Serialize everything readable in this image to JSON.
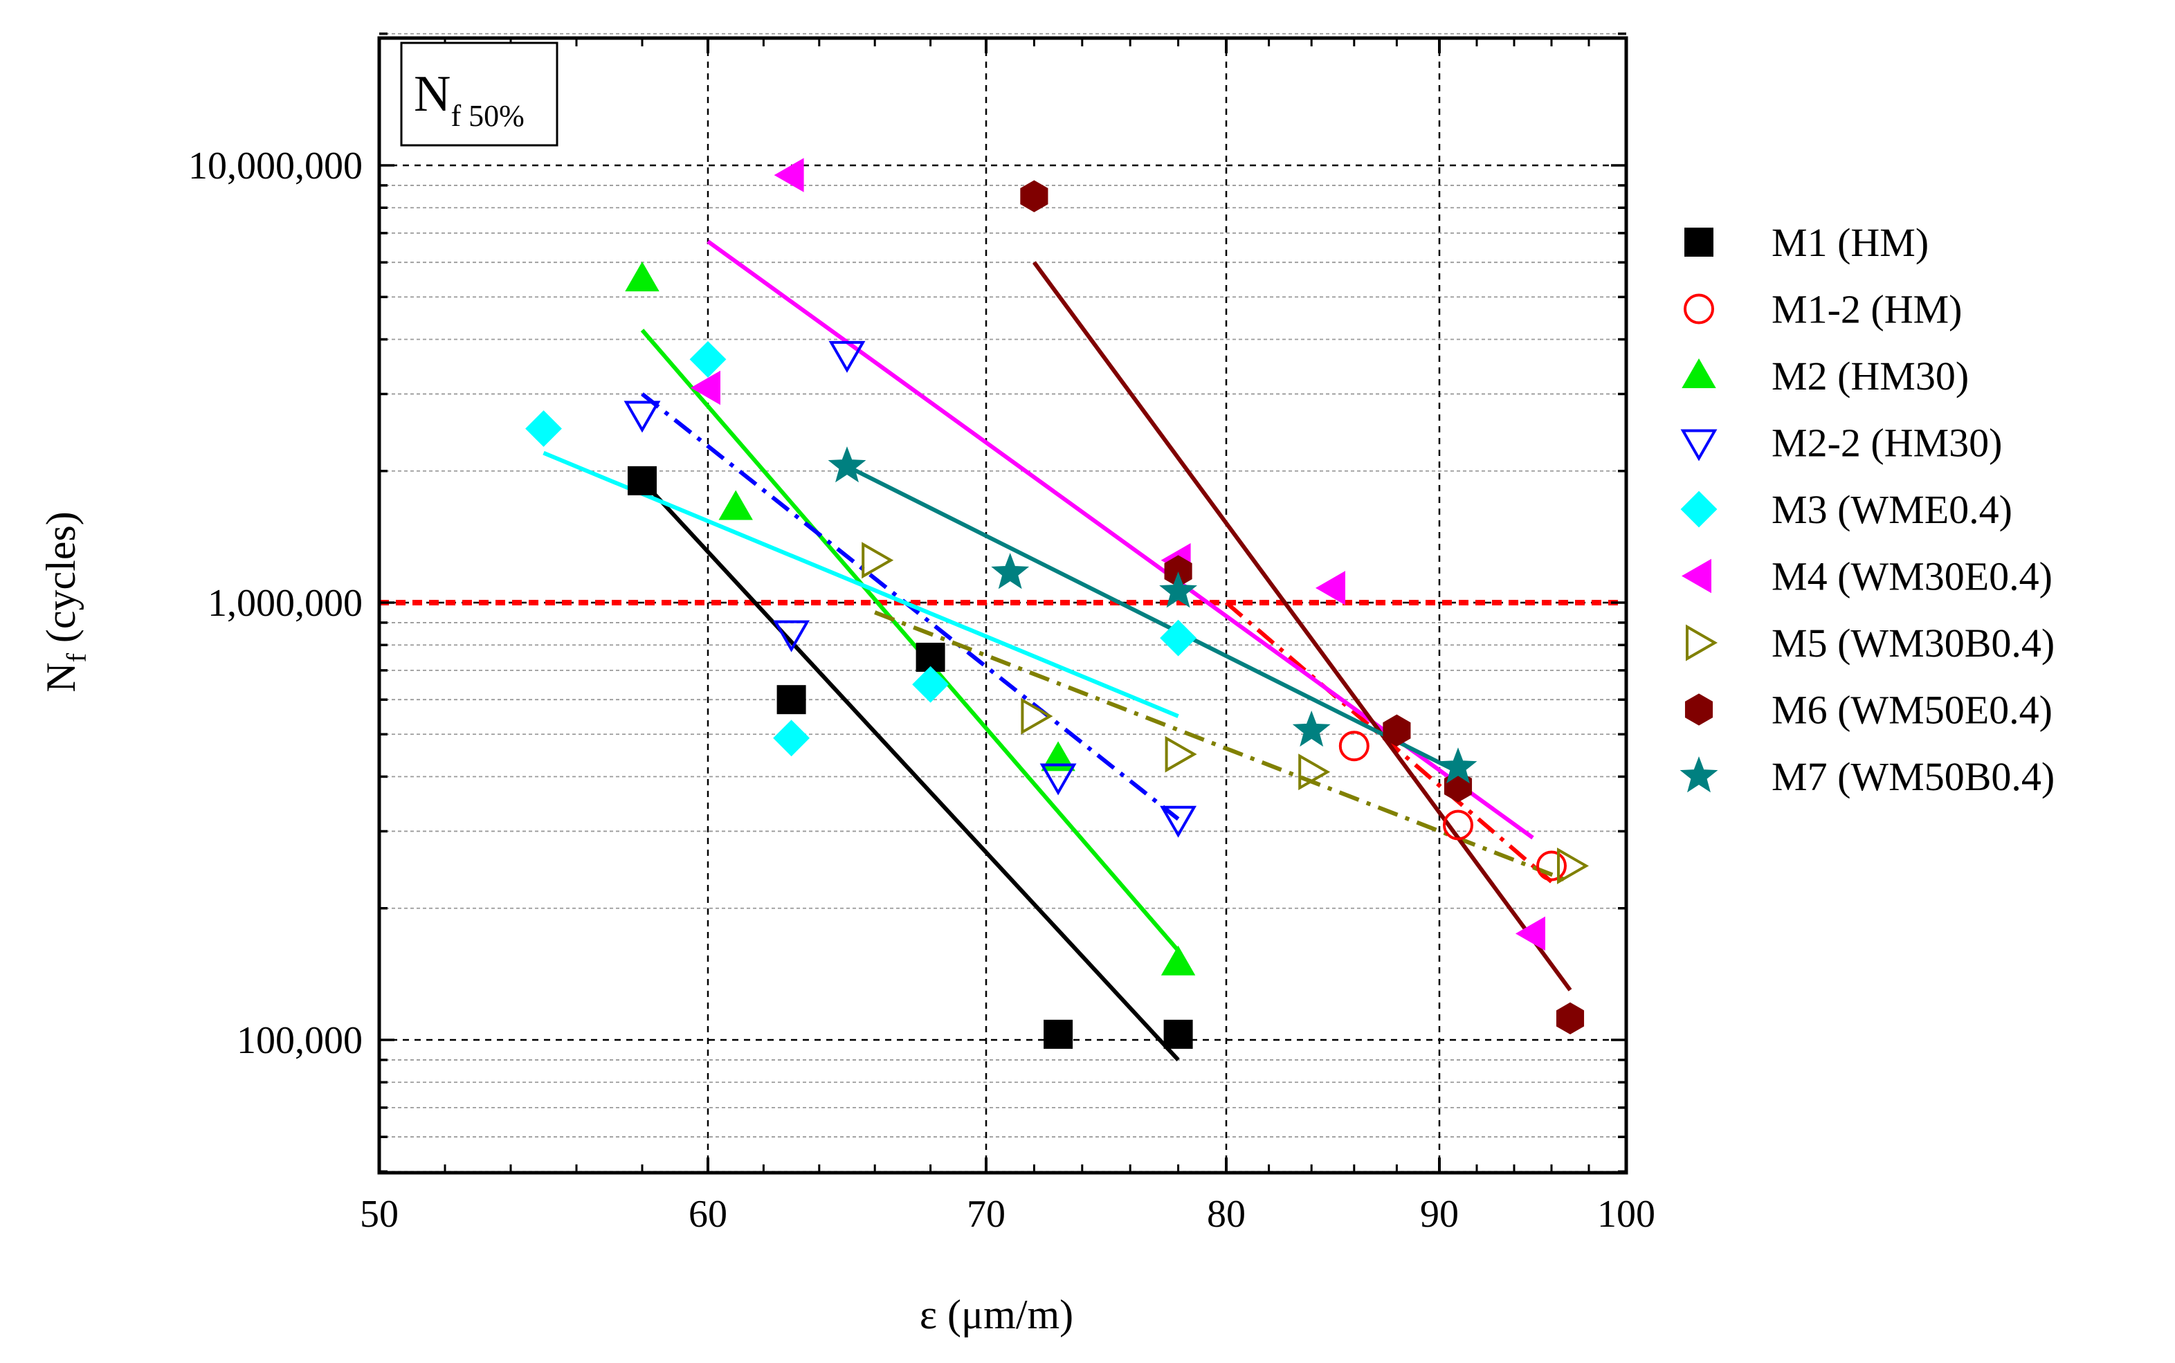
{
  "chart_data": {
    "type": "scatter",
    "title": "",
    "box_label": {
      "main": "N",
      "sub": "f 50%"
    },
    "xlabel": "ε (μm/m)",
    "ylabel": {
      "main": "N",
      "sub": "f",
      "rest": " (cycles)"
    },
    "x_scale": "piecewise-linear",
    "x_ticks": [
      50,
      60,
      70,
      80,
      90,
      100
    ],
    "x_tick_labels": [
      "50",
      "60",
      "70",
      "80",
      "90",
      "100"
    ],
    "y_scale": "log",
    "ylim": [
      50000,
      20000000
    ],
    "y_ticks": [
      100000,
      1000000,
      10000000
    ],
    "y_tick_labels": [
      "100,000",
      "1,000,000",
      "10,000,000"
    ],
    "reference_line": {
      "y": 1000000,
      "color": "#ff0000"
    },
    "series": [
      {
        "name": "M1 (HM)",
        "marker": "square",
        "color": "#000000",
        "filled": true,
        "points": [
          [
            58,
            1900000
          ],
          [
            63,
            600000
          ],
          [
            68,
            750000
          ],
          [
            73,
            103000
          ],
          [
            78,
            103000
          ]
        ],
        "fit": {
          "x": [
            58,
            78
          ],
          "y": [
            1900000,
            90000
          ],
          "dash": "solid"
        }
      },
      {
        "name": "M1-2 (HM)",
        "marker": "circle",
        "color": "#ff0000",
        "filled": false,
        "points": [
          [
            86,
            470000
          ],
          [
            91,
            310000
          ],
          [
            96,
            250000
          ]
        ],
        "fit": {
          "x": [
            80,
            96
          ],
          "y": [
            1000000,
            230000
          ],
          "dash": "dashdot"
        }
      },
      {
        "name": "M2 (HM30)",
        "marker": "triangle-up",
        "color": "#00ee00",
        "filled": true,
        "points": [
          [
            58,
            5500000
          ],
          [
            61,
            1650000
          ],
          [
            73,
            440000
          ],
          [
            78,
            150000
          ]
        ],
        "fit": {
          "x": [
            58,
            78
          ],
          "y": [
            4200000,
            160000
          ],
          "dash": "solid"
        }
      },
      {
        "name": "M2-2 (HM30)",
        "marker": "triangle-down",
        "color": "#0000ff",
        "filled": false,
        "points": [
          [
            58,
            2700000
          ],
          [
            63,
            850000
          ],
          [
            65,
            3700000
          ],
          [
            73,
            400000
          ],
          [
            78,
            320000
          ]
        ],
        "fit": {
          "x": [
            58,
            78
          ],
          "y": [
            3000000,
            320000
          ],
          "dash": "dashdot"
        }
      },
      {
        "name": "M3 (WME0.4)",
        "marker": "diamond",
        "color": "#00ffff",
        "filled": true,
        "points": [
          [
            55,
            2500000
          ],
          [
            60,
            3600000
          ],
          [
            63,
            490000
          ],
          [
            68,
            650000
          ],
          [
            78,
            830000
          ]
        ],
        "fit": {
          "x": [
            55,
            78
          ],
          "y": [
            2200000,
            550000
          ],
          "dash": "solid"
        }
      },
      {
        "name": "M4 (WM30E0.4)",
        "marker": "triangle-left",
        "color": "#ff00ff",
        "filled": true,
        "points": [
          [
            63,
            9500000
          ],
          [
            60,
            3100000
          ],
          [
            78,
            1250000
          ],
          [
            85,
            1080000
          ],
          [
            95,
            175000
          ]
        ],
        "fit": {
          "x": [
            60,
            95
          ],
          "y": [
            6700000,
            290000
          ],
          "dash": "solid"
        }
      },
      {
        "name": "M5 (WM30B0.4)",
        "marker": "triangle-right",
        "color": "#808000",
        "filled": false,
        "points": [
          [
            66,
            1250000
          ],
          [
            72,
            550000
          ],
          [
            78,
            450000
          ],
          [
            84,
            410000
          ],
          [
            97,
            250000
          ]
        ],
        "fit": {
          "x": [
            66,
            97
          ],
          "y": [
            950000,
            230000
          ],
          "dash": "dashdot"
        }
      },
      {
        "name": "M6 (WM50E0.4)",
        "marker": "hexagon",
        "color": "#800000",
        "filled": true,
        "points": [
          [
            72,
            8500000
          ],
          [
            78,
            1180000
          ],
          [
            88,
            510000
          ],
          [
            91,
            380000
          ],
          [
            97,
            112000
          ]
        ],
        "fit": {
          "x": [
            72,
            97
          ],
          "y": [
            6000000,
            130000
          ],
          "dash": "solid"
        }
      },
      {
        "name": "M7 (WM50B0.4)",
        "marker": "star",
        "color": "#008080",
        "filled": true,
        "points": [
          [
            65,
            2050000
          ],
          [
            71,
            1170000
          ],
          [
            78,
            1060000
          ],
          [
            84,
            510000
          ],
          [
            91,
            420000
          ]
        ],
        "fit": {
          "x": [
            65,
            91
          ],
          "y": [
            2050000,
            410000
          ],
          "dash": "solid"
        }
      }
    ]
  }
}
